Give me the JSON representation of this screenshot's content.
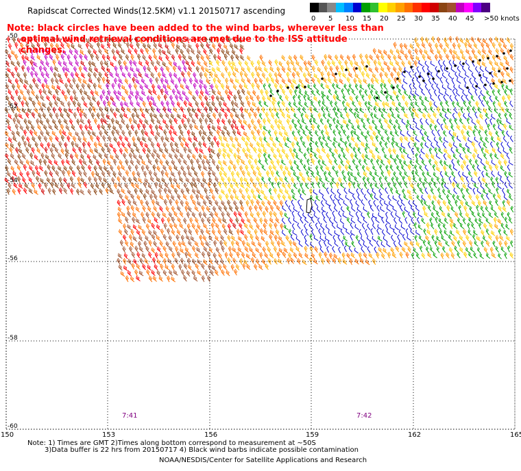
{
  "header": {
    "title": "Rapidscat Corrected Winds(12.5KM) v1.1 20150717 ascending",
    "note_line1": "Note: black circles have been added to the wind barbs, wherever less than",
    "note_line2": "optimal wind retrieval conditions are met due to the ISS attitude changes."
  },
  "legend": {
    "unit_label": ">50 knots",
    "tick_labels": [
      "0",
      "5",
      "10",
      "15",
      "20",
      "25",
      "30",
      "35",
      "40",
      "45"
    ],
    "colors": [
      "#000000",
      "#555555",
      "#888888",
      "#00bfff",
      "#0080ff",
      "#0000d0",
      "#00a000",
      "#30c030",
      "#ffff00",
      "#ffd000",
      "#ffa000",
      "#ff7000",
      "#ff3000",
      "#ff0000",
      "#d00000",
      "#8b4513",
      "#a0522d",
      "#c000c0",
      "#ff00ff",
      "#8000ff",
      "#4b0082"
    ]
  },
  "map": {
    "lat_labels": [
      "-50",
      "-52",
      "-54",
      "-56",
      "-58",
      "-60"
    ],
    "lon_labels": [
      "150",
      "153",
      "156",
      "159",
      "162",
      "165"
    ],
    "time_labels": [
      "7:41",
      "7:42"
    ],
    "colors": {
      "gray": "#555555",
      "red": "#ff0000",
      "darkred": "#d00000",
      "brown": "#8b4513",
      "tan": "#a0522d",
      "magenta": "#c000c0",
      "orange": "#ff7000",
      "amber": "#ffa000",
      "yellow": "#ffd000",
      "green": "#00a000",
      "blue": "#0000d0",
      "black": "#000000",
      "purple": "#800080"
    }
  },
  "footer": {
    "line1": "Note: 1) Times are GMT 2)Times along bottom correspond to measurement at ~50S",
    "line2": "3)Data buffer is 22 hrs from 20150717 4) Black wind barbs indicate possible contamination",
    "line3": "NOAA/NESDIS/Center for Satellite Applications and Research"
  }
}
